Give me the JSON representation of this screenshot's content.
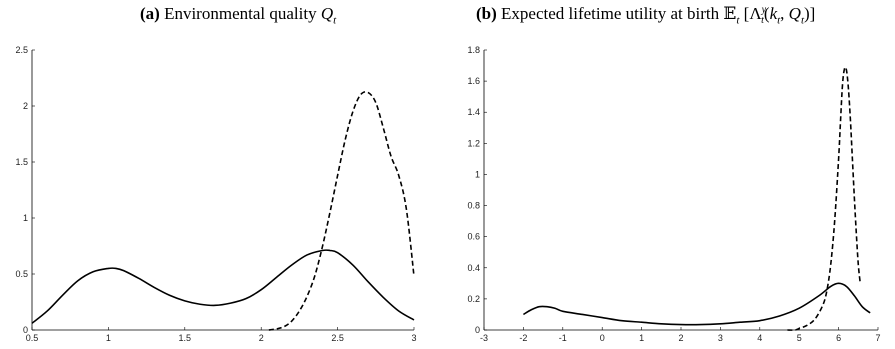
{
  "panels": [
    {
      "tag": "(a)",
      "caption": "Environmental quality Q_t"
    },
    {
      "tag": "(b)",
      "caption": "Expected lifetime utility at birth E_t [Λ_t^y(k_t, Q_t)]"
    }
  ],
  "chart_data": [
    {
      "type": "line",
      "title": "(a) Environmental quality Q_t",
      "xlabel": "",
      "ylabel": "",
      "xlim": [
        0.5,
        3
      ],
      "ylim": [
        0,
        2.5
      ],
      "xticks": [
        "0.5",
        "1",
        "1.5",
        "2",
        "2.5",
        "3"
      ],
      "yticks": [
        "0",
        "0.5",
        "1",
        "1.5",
        "2",
        "2.5"
      ],
      "series": [
        {
          "style": "solid",
          "x": [
            0.5,
            0.6,
            0.7,
            0.8,
            0.9,
            1.0,
            1.05,
            1.1,
            1.2,
            1.3,
            1.4,
            1.5,
            1.6,
            1.7,
            1.8,
            1.9,
            2.0,
            2.1,
            2.2,
            2.3,
            2.4,
            2.45,
            2.5,
            2.6,
            2.7,
            2.8,
            2.9,
            3.0
          ],
          "y": [
            0.06,
            0.17,
            0.31,
            0.44,
            0.52,
            0.55,
            0.55,
            0.53,
            0.46,
            0.38,
            0.31,
            0.26,
            0.23,
            0.22,
            0.24,
            0.28,
            0.36,
            0.47,
            0.58,
            0.67,
            0.71,
            0.71,
            0.69,
            0.58,
            0.43,
            0.29,
            0.17,
            0.09
          ]
        },
        {
          "style": "dashed",
          "x": [
            2.05,
            2.1,
            2.15,
            2.2,
            2.25,
            2.3,
            2.35,
            2.4,
            2.45,
            2.5,
            2.55,
            2.6,
            2.65,
            2.7,
            2.75,
            2.8,
            2.85,
            2.9,
            2.95,
            3.0
          ],
          "y": [
            0.0,
            0.01,
            0.03,
            0.08,
            0.17,
            0.3,
            0.48,
            0.74,
            1.05,
            1.38,
            1.7,
            1.95,
            2.1,
            2.12,
            2.03,
            1.8,
            1.55,
            1.38,
            1.08,
            0.48
          ]
        }
      ]
    },
    {
      "type": "line",
      "title": "(b) Expected lifetime utility at birth E_t [Λ_t^y(k_t, Q_t)]",
      "xlabel": "",
      "ylabel": "",
      "xlim": [
        -3,
        7
      ],
      "ylim": [
        0,
        1.8
      ],
      "xticks": [
        "-3",
        "-2",
        "-1",
        "0",
        "1",
        "2",
        "3",
        "4",
        "5",
        "6",
        "7"
      ],
      "yticks": [
        "0",
        "0.2",
        "0.4",
        "0.6",
        "0.8",
        "1",
        "1.2",
        "1.4",
        "1.6",
        "1.8"
      ],
      "series": [
        {
          "style": "solid",
          "x": [
            -2.0,
            -1.8,
            -1.6,
            -1.4,
            -1.2,
            -1.0,
            -0.5,
            0.0,
            0.5,
            1.0,
            1.5,
            2.0,
            2.5,
            3.0,
            3.5,
            4.0,
            4.5,
            5.0,
            5.5,
            5.8,
            6.0,
            6.2,
            6.4,
            6.6,
            6.8
          ],
          "y": [
            0.1,
            0.13,
            0.15,
            0.15,
            0.14,
            0.12,
            0.1,
            0.08,
            0.06,
            0.05,
            0.04,
            0.035,
            0.035,
            0.04,
            0.05,
            0.06,
            0.09,
            0.14,
            0.22,
            0.28,
            0.3,
            0.28,
            0.22,
            0.15,
            0.11
          ]
        },
        {
          "style": "dashed",
          "x": [
            4.7,
            4.9,
            5.0,
            5.2,
            5.4,
            5.6,
            5.7,
            5.8,
            5.9,
            6.0,
            6.05,
            6.1,
            6.15,
            6.2,
            6.25,
            6.3,
            6.35,
            6.4,
            6.45,
            6.5,
            6.55
          ],
          "y": [
            0.0,
            0.0,
            0.01,
            0.03,
            0.07,
            0.16,
            0.25,
            0.42,
            0.7,
            1.1,
            1.35,
            1.58,
            1.68,
            1.67,
            1.55,
            1.35,
            1.1,
            0.85,
            0.62,
            0.42,
            0.3
          ]
        }
      ]
    }
  ]
}
